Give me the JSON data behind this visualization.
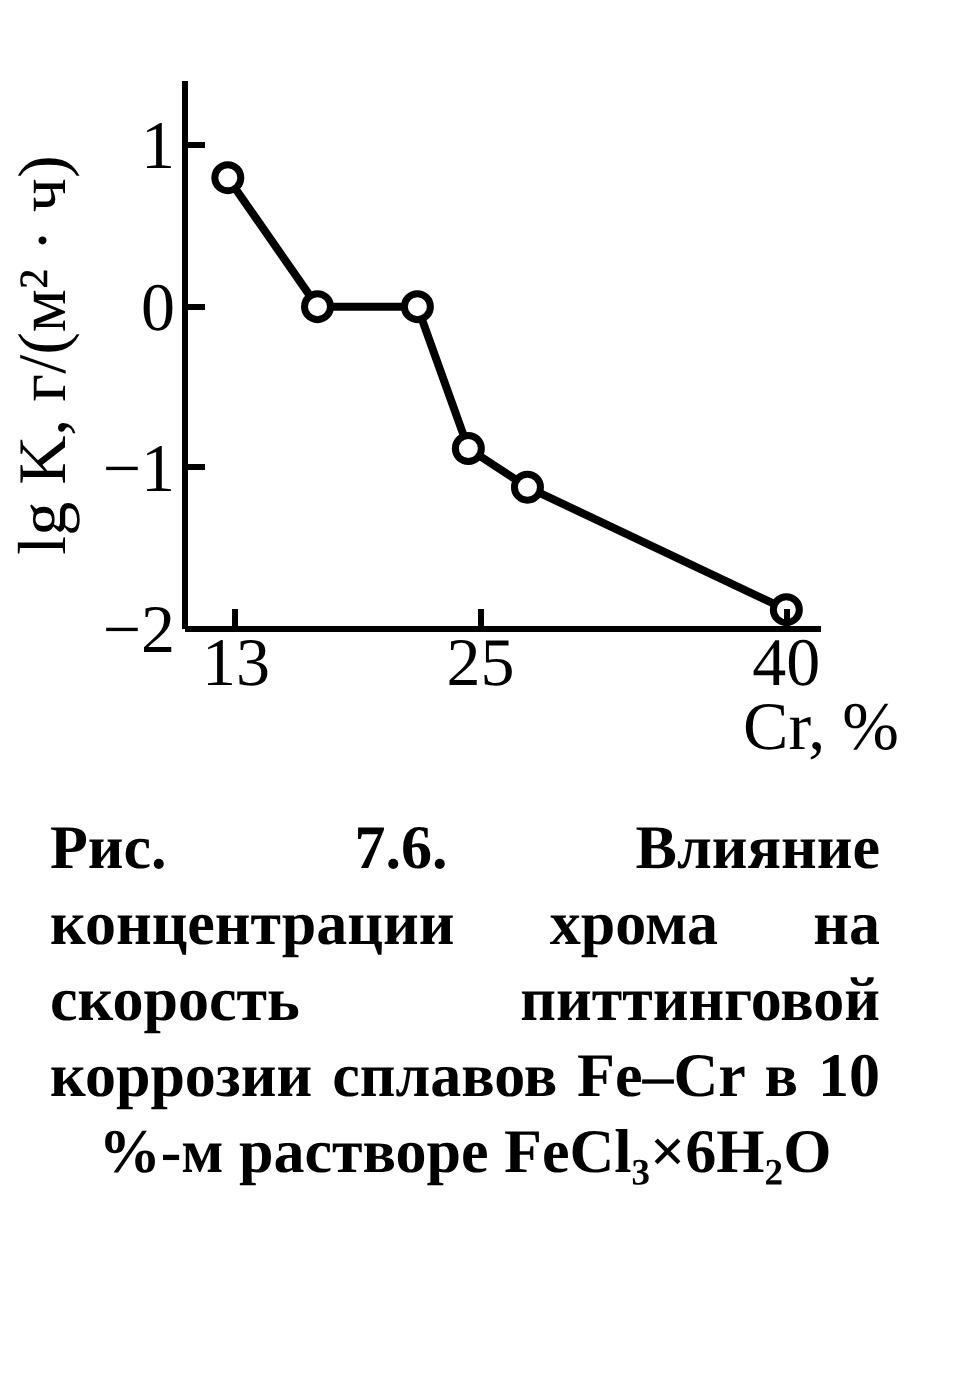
{
  "chart_data": {
    "type": "line",
    "title": "Рис. 7.6. Влияние концентрации хрома на скорость питтинговой коррозии сплавов Fe–Cr в 10 %-м растворе FeCl₃×6H₂O",
    "xlabel": "Cr, %",
    "ylabel": "lg K, г/(м² · ч)",
    "x": [
      12.6,
      17.0,
      21.9,
      24.4,
      27.3,
      40.0
    ],
    "series": [
      {
        "color": "#000000",
        "values": [
          0.8,
          0.0,
          0.0,
          -0.88,
          -1.12,
          -1.88
        ]
      }
    ],
    "xlim": [
      10.5,
      41.7
    ],
    "ylim": [
      -2,
      1.4
    ],
    "xticks": [
      13,
      25,
      40
    ],
    "yticks": [
      1,
      0,
      {
        "value": -1,
        "label": "−1"
      },
      {
        "value": -2,
        "label": "−2"
      }
    ],
    "grid": false,
    "marker": "circle",
    "line_style": "solid"
  }
}
